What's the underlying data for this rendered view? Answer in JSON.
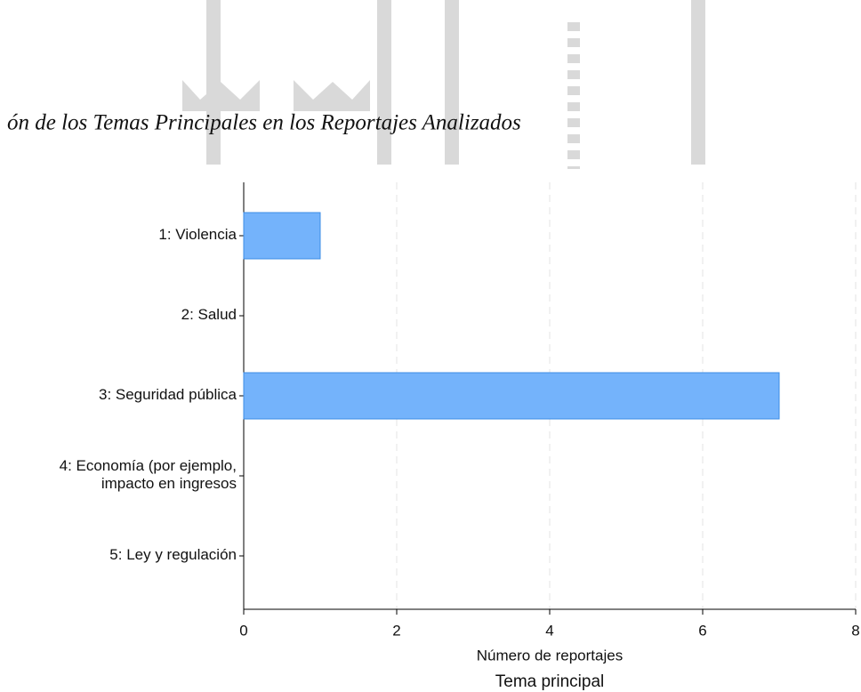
{
  "chart_data": {
    "type": "hbar",
    "title": "ón de los Temas Principales en los Reportajes Analizados",
    "categories": [
      "1: Violencia",
      "2: Salud",
      "3: Seguridad pública",
      "4: Economía (por ejemplo,\nimpacto en ingresos",
      "5: Ley y regulación"
    ],
    "values": [
      1,
      0,
      7,
      0,
      0
    ],
    "color": "#74b3fb",
    "xlim": [
      0,
      8
    ],
    "xticks": [
      0,
      2,
      4,
      6,
      8
    ],
    "xlabel": "Número de reportajes",
    "subtitle": "Tema principal",
    "grid": true
  }
}
